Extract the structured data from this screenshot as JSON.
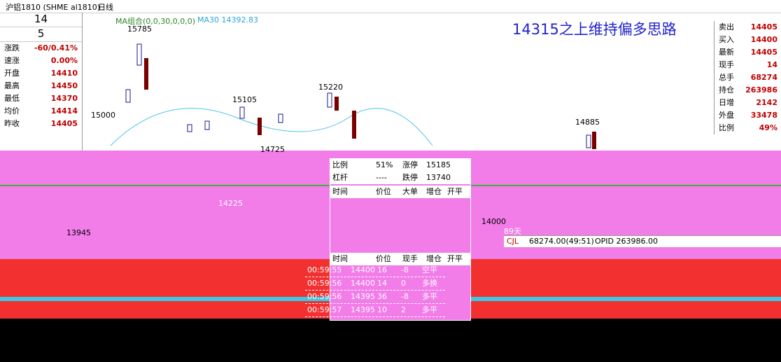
{
  "header": {
    "symbol": "沪铝1810 (SHME al1810)",
    "period": "日线"
  },
  "left_panel": {
    "bid_volume": "14",
    "ask_volume": "5",
    "rows": [
      [
        "涨跌",
        "-60/0.41%"
      ],
      [
        "速涨",
        "0.00%"
      ],
      [
        "开盘",
        "14410"
      ],
      [
        "最高",
        "14450"
      ],
      [
        "最低",
        "14370"
      ],
      [
        "均价",
        "14414"
      ],
      [
        "昨收",
        "14405"
      ]
    ]
  },
  "chart": {
    "indicator": "MA组合(0,0,30,0,0,0)",
    "ma30": "MA30 14392.83",
    "annotation": "14315之上维持偏多思路",
    "axis_labels": [
      "15000",
      "14000"
    ],
    "price_labels": [
      "15785",
      "15105",
      "15220",
      "14725",
      "14885",
      "14225",
      "13945"
    ]
  },
  "right_panel": {
    "rows": [
      [
        "卖出",
        "14405"
      ],
      [
        "买入",
        "14400"
      ],
      [
        "最新",
        "14405"
      ],
      [
        "现手",
        "14"
      ],
      [
        "总手",
        "68274"
      ],
      [
        "持仓",
        "263986"
      ],
      [
        "日增",
        "2142"
      ],
      [
        "外盘",
        "33478"
      ],
      [
        "比例",
        "49%"
      ]
    ]
  },
  "popup": {
    "rows": [
      [
        "比例",
        "51%",
        "涨停",
        "15185"
      ],
      [
        "杠杆",
        "----",
        "跌停",
        "13740"
      ]
    ],
    "header_a": [
      "时间",
      "价位",
      "大单",
      "增仓",
      "开平"
    ],
    "header_b": [
      "时间",
      "价位",
      "现手",
      "增仓",
      "开平"
    ],
    "ticks": [
      [
        "00:59:55",
        "14400",
        "16",
        "-8",
        "空平"
      ],
      [
        "00:59:56",
        "14400",
        "14",
        "0",
        "多换"
      ],
      [
        "00:59:56",
        "14395",
        "36",
        "-8",
        "多平"
      ],
      [
        "00:59:57",
        "14395",
        "10",
        "2",
        "多平"
      ]
    ]
  },
  "volume": {
    "label": "CJL",
    "value": "68274.00(49:51)",
    "opid": "OPID 263986.00",
    "days": "89天"
  }
}
